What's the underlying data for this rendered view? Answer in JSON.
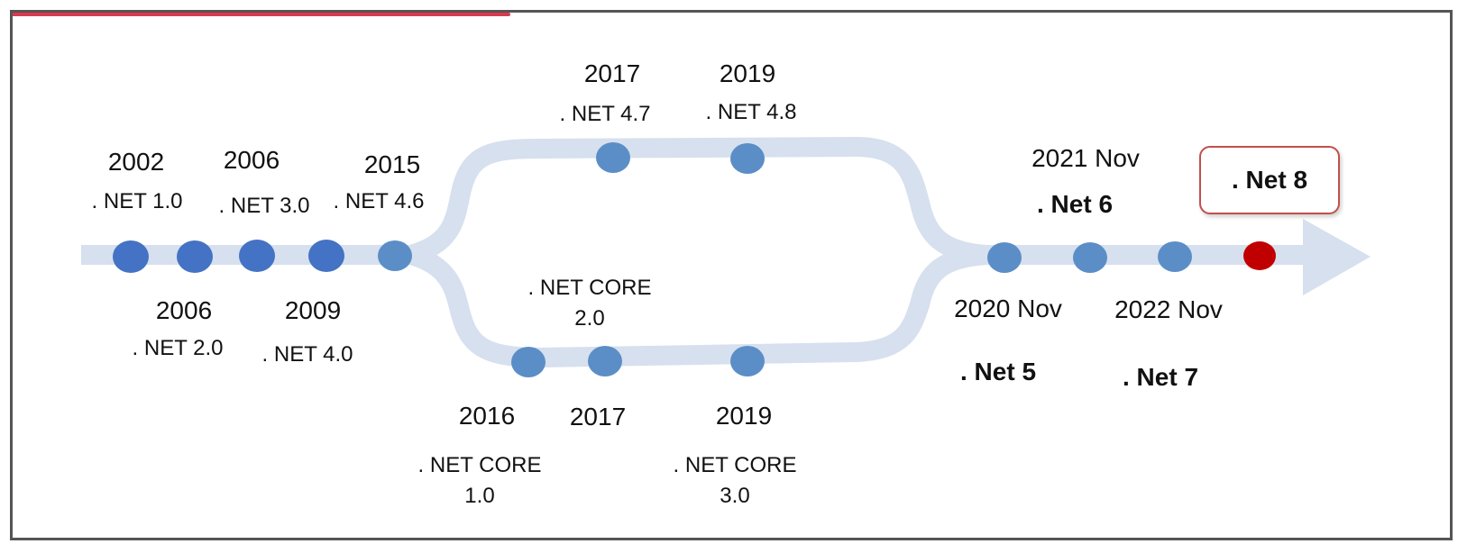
{
  "colors": {
    "path": "#d6e0ee",
    "milestone_dark": "#4472c4",
    "milestone_light": "#5b8ec7",
    "milestone_current": "#c00000",
    "callout_border": "#c0504d",
    "frame": "#555555",
    "accent_line": "#d9394e"
  },
  "milestones": {
    "m2002": {
      "year": "2002",
      "version": ". NET 1.0"
    },
    "m2006a": {
      "year": "2006",
      "version": ". NET 2.0"
    },
    "m2006b": {
      "year": "2006",
      "version": ". NET 3.0"
    },
    "m2009": {
      "year": "2009",
      "version": ". NET 4.0"
    },
    "m2015": {
      "year": "2015",
      "version": ". NET 4.6"
    },
    "m2017fw": {
      "year": "2017",
      "version": ". NET 4.7"
    },
    "m2019fw": {
      "year": "2019",
      "version": ". NET 4.8"
    },
    "m2016core": {
      "year": "2016",
      "version_line1": ". NET CORE",
      "version_line2": "1.0"
    },
    "m2017core": {
      "year": "2017",
      "version_line1": ". NET CORE",
      "version_line2": "2.0"
    },
    "m2019core": {
      "year": "2019",
      "version_line1": ". NET CORE",
      "version_line2": "3.0"
    },
    "m2020": {
      "year": "2020 Nov",
      "version": ". Net 5"
    },
    "m2021": {
      "year": "2021 Nov",
      "version": ". Net 6"
    },
    "m2022": {
      "year": "2022 Nov",
      "version": ". Net 7"
    },
    "m2023": {
      "version": ". Net 8"
    }
  }
}
